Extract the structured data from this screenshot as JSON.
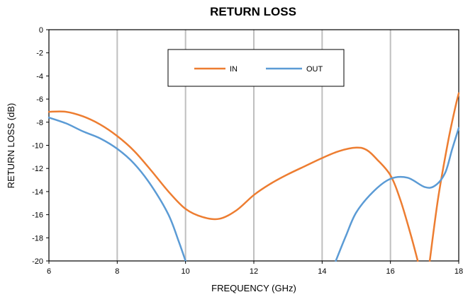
{
  "chart_data": {
    "type": "line",
    "title": "RETURN LOSS",
    "xlabel": "FREQUENCY (GHz)",
    "ylabel": "RETURN LOSS (dB)",
    "xlim": [
      6,
      18
    ],
    "ylim": [
      -20,
      0
    ],
    "xticks": [
      "6",
      "8",
      "10",
      "12",
      "14",
      "16",
      "18"
    ],
    "yticks": [
      "0",
      "-2",
      "-4",
      "-6",
      "-8",
      "-10",
      "-12",
      "-14",
      "-16",
      "-18",
      "-20"
    ],
    "grid": "vertical",
    "legend_position": "top-center",
    "series": [
      {
        "name": "IN",
        "color": "#ED7D31",
        "points": [
          [
            6.0,
            -7.1
          ],
          [
            6.5,
            -7.1
          ],
          [
            7.0,
            -7.5
          ],
          [
            7.5,
            -8.2
          ],
          [
            8.0,
            -9.2
          ],
          [
            8.5,
            -10.5
          ],
          [
            9.0,
            -12.2
          ],
          [
            9.5,
            -14.0
          ],
          [
            10.0,
            -15.5
          ],
          [
            10.5,
            -16.2
          ],
          [
            11.0,
            -16.35
          ],
          [
            11.5,
            -15.6
          ],
          [
            12.0,
            -14.3
          ],
          [
            12.5,
            -13.3
          ],
          [
            13.0,
            -12.5
          ],
          [
            13.5,
            -11.8
          ],
          [
            14.0,
            -11.1
          ],
          [
            14.5,
            -10.5
          ],
          [
            15.0,
            -10.2
          ],
          [
            15.3,
            -10.4
          ],
          [
            15.6,
            -11.2
          ],
          [
            16.0,
            -12.6
          ],
          [
            16.3,
            -14.8
          ],
          [
            16.6,
            -17.8
          ],
          [
            16.8,
            -20.0
          ]
        ]
      },
      {
        "name": "IN",
        "color": "#ED7D31",
        "points": [
          [
            17.15,
            -20.0
          ],
          [
            17.4,
            -14.5
          ],
          [
            17.7,
            -9.5
          ],
          [
            17.9,
            -6.7
          ],
          [
            18.0,
            -5.5
          ]
        ]
      },
      {
        "name": "OUT",
        "color": "#5B9BD5",
        "points": [
          [
            6.0,
            -7.6
          ],
          [
            6.5,
            -8.1
          ],
          [
            7.0,
            -8.8
          ],
          [
            7.5,
            -9.4
          ],
          [
            8.0,
            -10.3
          ],
          [
            8.5,
            -11.6
          ],
          [
            9.0,
            -13.5
          ],
          [
            9.5,
            -16.0
          ],
          [
            9.8,
            -18.3
          ],
          [
            10.0,
            -20.0
          ]
        ]
      },
      {
        "name": "OUT",
        "color": "#5B9BD5",
        "points": [
          [
            14.4,
            -20.0
          ],
          [
            14.7,
            -17.8
          ],
          [
            15.0,
            -15.8
          ],
          [
            15.5,
            -14.0
          ],
          [
            16.0,
            -12.9
          ],
          [
            16.5,
            -12.8
          ],
          [
            17.0,
            -13.6
          ],
          [
            17.3,
            -13.5
          ],
          [
            17.6,
            -12.4
          ],
          [
            17.8,
            -10.4
          ],
          [
            18.0,
            -8.5
          ]
        ]
      }
    ]
  }
}
